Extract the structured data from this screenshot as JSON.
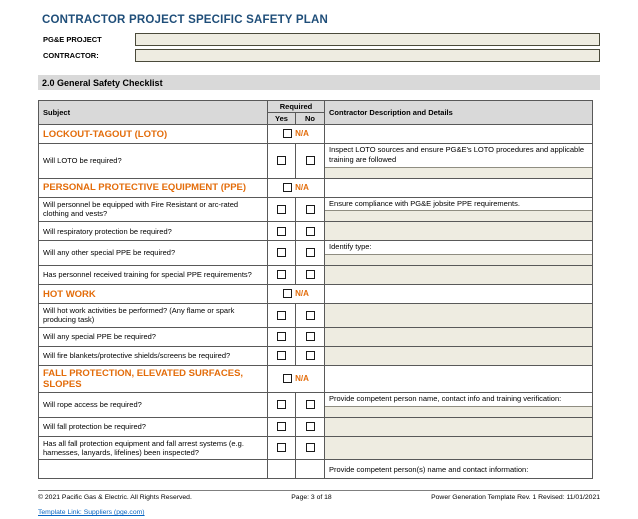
{
  "header": {
    "title": "CONTRACTOR PROJECT SPECIFIC SAFETY PLAN",
    "fields": [
      {
        "label": "PG&E PROJECT",
        "value": ""
      },
      {
        "label": "CONTRACTOR:",
        "value": ""
      }
    ]
  },
  "section": {
    "heading": "2.0 General Safety Checklist"
  },
  "table": {
    "headers": {
      "subject": "Subject",
      "required": "Required",
      "yes": "Yes",
      "no": "No",
      "description": "Contractor Description and Details"
    },
    "na_label": "N/A",
    "rows": [
      {
        "type": "section",
        "title": "LOCKOUT-TAGOUT (LOTO)"
      },
      {
        "type": "question",
        "subject": "Will LOTO be required?",
        "desc_text": "Inspect LOTO sources and ensure PG&E's LOTO procedures and applicable training are followed",
        "desc_input": true
      },
      {
        "type": "section",
        "title": "PERSONAL PROTECTIVE EQUIPMENT (PPE)"
      },
      {
        "type": "question",
        "subject": "Will personnel be equipped with Fire Resistant or arc-rated clothing and vests?",
        "desc_text": "Ensure compliance with PG&E jobsite PPE requirements.",
        "desc_input": true
      },
      {
        "type": "question",
        "subject": "Will respiratory protection be required?",
        "desc_full": true
      },
      {
        "type": "question",
        "subject": "Will any other special PPE be required?",
        "desc_text": "Identify type:",
        "desc_input": true
      },
      {
        "type": "question",
        "subject": "Has personnel received training for special PPE requirements?",
        "desc_full": true
      },
      {
        "type": "section",
        "title": "HOT WORK"
      },
      {
        "type": "question",
        "subject": "Will hot work activities be performed? (Any flame or spark producing task)",
        "desc_full": true
      },
      {
        "type": "question",
        "subject": "Will any special PPE be required?",
        "desc_full": true
      },
      {
        "type": "question",
        "subject": "Will fire blankets/protective shields/screens be required?",
        "desc_full": true
      },
      {
        "type": "section",
        "title": "FALL PROTECTION, ELEVATED SURFACES, SLOPES"
      },
      {
        "type": "question",
        "subject": "Will rope access be required?",
        "desc_text": "Provide competent person name, contact info and training verification:",
        "desc_input": true
      },
      {
        "type": "question",
        "subject": "Will fall protection be required?",
        "desc_full": true
      },
      {
        "type": "question",
        "subject": "Has all fall protection equipment and fall arrest systems (e.g. harnesses, lanyards, lifelines) been inspected?",
        "desc_full": true
      },
      {
        "type": "note",
        "desc_text": "Provide competent person(s) name and contact information:"
      }
    ]
  },
  "footer": {
    "copyright": "© 2021 Pacific Gas & Electric. All Rights Reserved.",
    "page": "Page: 3 of 18",
    "revision": "Power Generation Template Rev. 1 Revised: 11/01/2021",
    "link": "Template Link: Suppliers (pge.com)"
  },
  "colors": {
    "title_blue": "#1F4E79",
    "section_orange": "#E36C0A",
    "field_beige": "#EEECE1",
    "header_gray": "#D9D9D9"
  }
}
